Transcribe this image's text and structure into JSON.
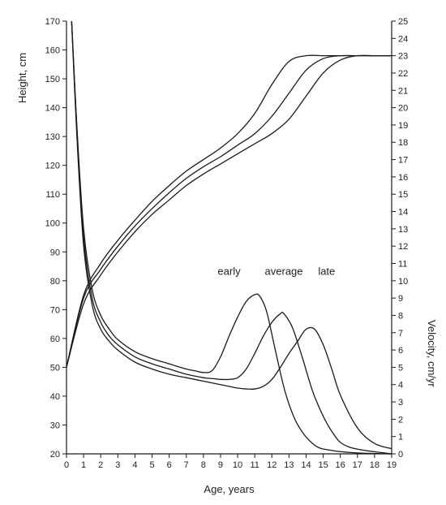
{
  "chart_data": {
    "type": "line",
    "xlabel": "Age, years",
    "ylabel_left": "Height, cm",
    "ylabel_right": "Velocity, cm/yr",
    "xlim": [
      0,
      19
    ],
    "ylim_left": [
      20,
      170
    ],
    "ylim_right": [
      0,
      25
    ],
    "x_ticks": [
      0,
      1,
      2,
      3,
      4,
      5,
      6,
      7,
      8,
      9,
      10,
      11,
      12,
      13,
      14,
      15,
      16,
      17,
      18,
      19
    ],
    "y_left_ticks": [
      20,
      30,
      40,
      50,
      60,
      70,
      80,
      90,
      100,
      110,
      120,
      130,
      140,
      150,
      160,
      170
    ],
    "y_right_ticks": [
      0,
      1,
      2,
      3,
      4,
      5,
      6,
      7,
      8,
      9,
      10,
      11,
      12,
      13,
      14,
      15,
      16,
      17,
      18,
      19,
      20,
      21,
      22,
      23,
      24,
      25
    ],
    "grid": false,
    "annotations": [
      {
        "text": "early",
        "x": 9.5,
        "y_left": 82
      },
      {
        "text": "average",
        "x": 12.7,
        "y_left": 82
      },
      {
        "text": "late",
        "x": 15.2,
        "y_left": 82
      }
    ],
    "series": [
      {
        "axis": "left",
        "x": [
          0,
          1,
          2,
          3,
          4,
          5,
          6,
          7,
          8,
          9,
          10,
          11,
          12,
          13,
          14,
          15,
          16,
          17,
          18,
          19
        ],
        "values": [
          50,
          75,
          86,
          94,
          101,
          107.5,
          113,
          118,
          122,
          126,
          131,
          138,
          148,
          156,
          158,
          158,
          158,
          158,
          158,
          158
        ]
      },
      {
        "axis": "left",
        "x": [
          0,
          1,
          2,
          3,
          4,
          5,
          6,
          7,
          8,
          9,
          10,
          11,
          12,
          13,
          14,
          15,
          16,
          17,
          18,
          19
        ],
        "values": [
          50,
          74,
          84,
          92,
          99,
          105,
          110.5,
          115.5,
          119.5,
          123,
          127,
          131,
          137,
          145,
          153,
          157,
          158,
          158,
          158,
          158
        ]
      },
      {
        "axis": "left",
        "x": [
          0,
          1,
          2,
          3,
          4,
          5,
          6,
          7,
          8,
          9,
          10,
          11,
          12,
          13,
          14,
          15,
          16,
          17,
          18,
          19
        ],
        "values": [
          50,
          72,
          82,
          90,
          97,
          103,
          108,
          113,
          117,
          120.5,
          124,
          127.5,
          131,
          136,
          144,
          152,
          156.5,
          158,
          158,
          158
        ]
      },
      {
        "axis": "right",
        "x": [
          0.3,
          0.6,
          1,
          1.5,
          2,
          2.5,
          3,
          4,
          5,
          6,
          7,
          7.5,
          8,
          8.5,
          9,
          9.5,
          10,
          10.5,
          11,
          11.3,
          11.7,
          12.2,
          12.8,
          13.5,
          14.5,
          15.5,
          17,
          19
        ],
        "values": [
          25,
          19,
          13,
          9.5,
          8,
          7.2,
          6.6,
          5.9,
          5.5,
          5.2,
          4.9,
          4.8,
          4.7,
          4.8,
          5.6,
          6.8,
          7.9,
          8.8,
          9.2,
          9.1,
          8.2,
          6,
          3.5,
          1.7,
          0.5,
          0.2,
          0.05,
          0
        ]
      },
      {
        "axis": "right",
        "x": [
          0.3,
          0.6,
          1,
          1.5,
          2,
          2.5,
          3,
          4,
          5,
          6,
          7,
          8,
          8.5,
          9,
          9.5,
          10,
          10.5,
          11,
          11.5,
          12,
          12.5,
          12.7,
          13.2,
          13.8,
          14.5,
          15.5,
          16.5,
          19
        ],
        "values": [
          25,
          19,
          12.5,
          9,
          7.6,
          6.8,
          6.3,
          5.6,
          5.2,
          4.9,
          4.6,
          4.4,
          4.35,
          4.3,
          4.3,
          4.4,
          4.9,
          5.8,
          6.8,
          7.6,
          8.1,
          8.1,
          7.3,
          5.5,
          3.3,
          1.3,
          0.4,
          0
        ]
      },
      {
        "axis": "right",
        "x": [
          0.3,
          0.6,
          1,
          1.5,
          2,
          2.5,
          3,
          4,
          5,
          6,
          7,
          8,
          9,
          9.5,
          10,
          10.5,
          11,
          11.5,
          12,
          12.5,
          13,
          13.5,
          14,
          14.5,
          15,
          15.5,
          16,
          17,
          18,
          19
        ],
        "values": [
          25,
          18.5,
          12,
          8.6,
          7.2,
          6.5,
          6,
          5.3,
          4.9,
          4.6,
          4.4,
          4.2,
          4,
          3.9,
          3.8,
          3.75,
          3.75,
          3.9,
          4.3,
          5,
          5.8,
          6.5,
          7.2,
          7.2,
          6.3,
          4.9,
          3.4,
          1.5,
          0.6,
          0.3
        ]
      }
    ]
  }
}
